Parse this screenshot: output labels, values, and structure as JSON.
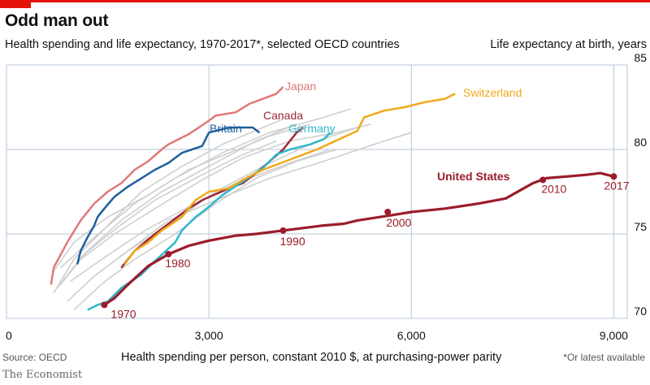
{
  "title": "Odd man out",
  "subtitle": "Health spending and life expectancy, 1970-2017*, selected OECD countries",
  "y_unit": "Life expectancy at birth, years",
  "source": "Source: OECD",
  "note": "*Or latest available",
  "brand": "The Economist",
  "colors": {
    "japan": "#e07878",
    "canada": "#9e2a3a",
    "britain": "#1f5f9e",
    "germany": "#2fb8cc",
    "switzerland": "#f0a818",
    "united_states": "#9b1c2a",
    "other": "#cfcfcf",
    "grid": "#b7c7d6",
    "accent": "#e3120b"
  },
  "chart_data": {
    "type": "line",
    "xlabel": "Health spending per person, constant 2010 $, at purchasing-power parity",
    "ylabel": "Life expectancy at birth, years",
    "xlim": [
      0,
      9200
    ],
    "ylim": [
      70,
      85
    ],
    "x_ticks": [
      "0",
      "3,000",
      "6,000",
      "9,000"
    ],
    "x_tick_values": [
      0,
      3000,
      6000,
      9000
    ],
    "y_ticks": [
      "70",
      "75",
      "80",
      "85"
    ],
    "y_tick_values": [
      70,
      75,
      80,
      85
    ],
    "grid": true,
    "series": [
      {
        "name": "Japan",
        "key": "japan",
        "values": [
          [
            660,
            72.0
          ],
          [
            700,
            73.0
          ],
          [
            900,
            74.5
          ],
          [
            1100,
            75.8
          ],
          [
            1300,
            76.8
          ],
          [
            1500,
            77.5
          ],
          [
            1700,
            78.0
          ],
          [
            1900,
            78.8
          ],
          [
            2100,
            79.3
          ],
          [
            2300,
            80.0
          ],
          [
            2400,
            80.3
          ],
          [
            2700,
            80.9
          ],
          [
            3000,
            81.7
          ],
          [
            3100,
            82.0
          ],
          [
            3400,
            82.2
          ],
          [
            3600,
            82.7
          ],
          [
            4000,
            83.3
          ],
          [
            4100,
            83.7
          ]
        ]
      },
      {
        "name": "Canada",
        "key": "canada",
        "values": [
          [
            1700,
            73.0
          ],
          [
            1900,
            74.0
          ],
          [
            2200,
            75.0
          ],
          [
            2400,
            75.6
          ],
          [
            2700,
            76.5
          ],
          [
            2900,
            77.0
          ],
          [
            3300,
            77.7
          ],
          [
            3500,
            78.0
          ],
          [
            3700,
            78.6
          ],
          [
            3900,
            79.3
          ],
          [
            4100,
            80.0
          ],
          [
            4300,
            81.0
          ],
          [
            4400,
            81.3
          ]
        ]
      },
      {
        "name": "Britain",
        "key": "britain",
        "values": [
          [
            1050,
            73.2
          ],
          [
            1100,
            74.0
          ],
          [
            1200,
            74.8
          ],
          [
            1300,
            75.5
          ],
          [
            1350,
            76.0
          ],
          [
            1450,
            76.5
          ],
          [
            1600,
            77.2
          ],
          [
            1800,
            77.8
          ],
          [
            2000,
            78.3
          ],
          [
            2200,
            78.8
          ],
          [
            2400,
            79.2
          ],
          [
            2600,
            79.8
          ],
          [
            2900,
            80.2
          ],
          [
            3000,
            81.0
          ],
          [
            3300,
            81.3
          ],
          [
            3650,
            81.3
          ],
          [
            3750,
            81.0
          ]
        ]
      },
      {
        "name": "Germany",
        "key": "germany",
        "values": [
          [
            1200,
            70.5
          ],
          [
            1350,
            70.8
          ],
          [
            1500,
            71.0
          ],
          [
            1700,
            71.8
          ],
          [
            2000,
            72.6
          ],
          [
            2200,
            73.4
          ],
          [
            2500,
            74.5
          ],
          [
            2600,
            75.2
          ],
          [
            2800,
            76.0
          ],
          [
            3000,
            76.6
          ],
          [
            3200,
            77.3
          ],
          [
            3500,
            78.1
          ],
          [
            3800,
            78.9
          ],
          [
            4000,
            79.7
          ],
          [
            4200,
            80.0
          ],
          [
            4500,
            80.3
          ],
          [
            4700,
            80.6
          ],
          [
            4800,
            81.0
          ]
        ]
      },
      {
        "name": "Switzerland",
        "key": "switzerland",
        "values": [
          [
            1750,
            73.2
          ],
          [
            1900,
            74.0
          ],
          [
            2100,
            74.5
          ],
          [
            2300,
            75.2
          ],
          [
            2600,
            76.0
          ],
          [
            2800,
            77.0
          ],
          [
            3000,
            77.5
          ],
          [
            3300,
            77.7
          ],
          [
            3500,
            78.2
          ],
          [
            3800,
            78.8
          ],
          [
            4200,
            79.4
          ],
          [
            4600,
            80.0
          ],
          [
            5200,
            81.1
          ],
          [
            5300,
            81.9
          ],
          [
            5600,
            82.3
          ],
          [
            5900,
            82.5
          ],
          [
            6200,
            82.8
          ],
          [
            6500,
            83.0
          ],
          [
            6650,
            83.3
          ]
        ]
      },
      {
        "name": "United States",
        "key": "united_states",
        "values": [
          [
            1450,
            70.8
          ],
          [
            1600,
            71.2
          ],
          [
            1800,
            72.0
          ],
          [
            2100,
            73.1
          ],
          [
            2400,
            73.8
          ],
          [
            2700,
            74.3
          ],
          [
            3000,
            74.6
          ],
          [
            3400,
            74.9
          ],
          [
            3700,
            75.0
          ],
          [
            4100,
            75.2
          ],
          [
            4500,
            75.4
          ],
          [
            4700,
            75.5
          ],
          [
            5000,
            75.6
          ],
          [
            5200,
            75.8
          ],
          [
            5700,
            76.1
          ],
          [
            6000,
            76.3
          ],
          [
            6500,
            76.5
          ],
          [
            7000,
            76.8
          ],
          [
            7400,
            77.1
          ],
          [
            7800,
            78.0
          ],
          [
            8000,
            78.3
          ],
          [
            8300,
            78.4
          ],
          [
            8600,
            78.5
          ],
          [
            8800,
            78.6
          ],
          [
            9000,
            78.4
          ]
        ]
      }
    ],
    "other_countries": [
      [
        [
          700,
          71.5
        ],
        [
          1000,
          73.5
        ],
        [
          1500,
          75.5
        ],
        [
          2000,
          77.5
        ],
        [
          2600,
          79.0
        ],
        [
          3200,
          80.3
        ],
        [
          3800,
          81.3
        ],
        [
          4100,
          81.8
        ]
      ],
      [
        [
          800,
          72.0
        ],
        [
          1200,
          74.0
        ],
        [
          1700,
          75.8
        ],
        [
          2300,
          77.5
        ],
        [
          3000,
          79.0
        ],
        [
          3700,
          80.5
        ],
        [
          4300,
          81.5
        ]
      ],
      [
        [
          900,
          71.0
        ],
        [
          1300,
          72.5
        ],
        [
          1800,
          74.0
        ],
        [
          2400,
          75.5
        ],
        [
          3100,
          77.5
        ],
        [
          3800,
          79.0
        ],
        [
          4600,
          80.5
        ],
        [
          5200,
          81.3
        ]
      ],
      [
        [
          700,
          72.8
        ],
        [
          1000,
          74.5
        ],
        [
          1500,
          76.0
        ],
        [
          2100,
          77.3
        ],
        [
          2700,
          78.8
        ],
        [
          3300,
          79.8
        ],
        [
          3900,
          80.8
        ],
        [
          4500,
          81.5
        ]
      ],
      [
        [
          1000,
          70.5
        ],
        [
          1400,
          72.0
        ],
        [
          1900,
          73.5
        ],
        [
          2500,
          75.0
        ],
        [
          3100,
          76.8
        ],
        [
          3700,
          78.3
        ],
        [
          4300,
          79.3
        ],
        [
          4900,
          80.0
        ]
      ],
      [
        [
          1100,
          73.5
        ],
        [
          1600,
          75.0
        ],
        [
          2200,
          76.5
        ],
        [
          2900,
          78.2
        ],
        [
          3500,
          79.5
        ],
        [
          4200,
          80.5
        ],
        [
          4900,
          81.0
        ],
        [
          5400,
          81.5
        ]
      ],
      [
        [
          800,
          73.0
        ],
        [
          1300,
          74.8
        ],
        [
          1900,
          76.8
        ],
        [
          2500,
          78.3
        ],
        [
          3200,
          79.8
        ],
        [
          3900,
          81.0
        ],
        [
          4700,
          81.9
        ],
        [
          5100,
          82.4
        ]
      ],
      [
        [
          1300,
          72.5
        ],
        [
          1800,
          74.0
        ],
        [
          2400,
          75.8
        ],
        [
          3100,
          77.0
        ],
        [
          3900,
          78.3
        ],
        [
          4700,
          79.3
        ],
        [
          5600,
          80.5
        ],
        [
          6000,
          81.0
        ]
      ],
      [
        [
          750,
          71.8
        ],
        [
          1150,
          73.8
        ],
        [
          1650,
          75.4
        ],
        [
          2200,
          77.0
        ],
        [
          2850,
          78.4
        ],
        [
          3450,
          79.6
        ],
        [
          4000,
          80.5
        ]
      ],
      [
        [
          950,
          72.2
        ],
        [
          1450,
          73.6
        ],
        [
          2050,
          75.2
        ],
        [
          2700,
          76.6
        ],
        [
          3400,
          78.0
        ],
        [
          4200,
          79.2
        ],
        [
          4800,
          80.0
        ]
      ]
    ],
    "annotations": [
      {
        "year": "1970",
        "x": 1450,
        "y": 70.8
      },
      {
        "year": "1980",
        "x": 2400,
        "y": 73.8
      },
      {
        "year": "1990",
        "x": 4100,
        "y": 75.2
      },
      {
        "year": "2000",
        "x": 5650,
        "y": 76.3
      },
      {
        "year": "2010",
        "x": 7950,
        "y": 78.2
      },
      {
        "year": "2017",
        "x": 9000,
        "y": 78.4
      }
    ]
  }
}
